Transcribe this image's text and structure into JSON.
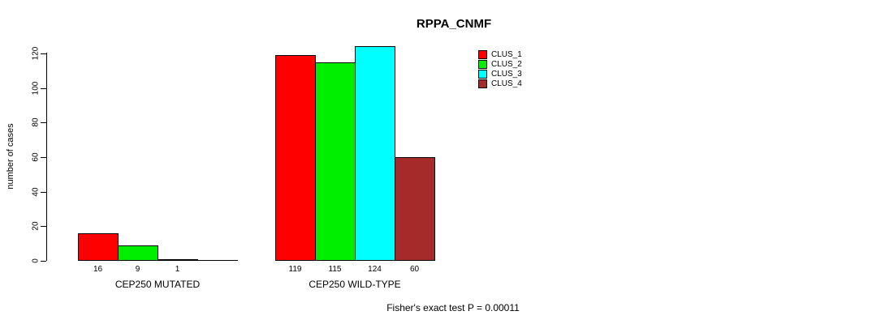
{
  "chart_data": {
    "type": "bar",
    "title": "RPPA_CNMF",
    "ylabel": "number of cases",
    "xlabel": "",
    "ylim": [
      0,
      120
    ],
    "yticks": [
      0,
      20,
      40,
      60,
      80,
      100,
      120
    ],
    "grid": false,
    "legend_position": "top-right",
    "categories": [
      "CEP250 MUTATED",
      "CEP250 WILD-TYPE"
    ],
    "series": [
      {
        "name": "CLUS_1",
        "color": "#FF0000",
        "values": [
          16,
          119
        ]
      },
      {
        "name": "CLUS_2",
        "color": "#00EE00",
        "values": [
          9,
          115
        ]
      },
      {
        "name": "CLUS_3",
        "color": "#00FFFF",
        "values": [
          1,
          124
        ]
      },
      {
        "name": "CLUS_4",
        "color": "#A52A2A",
        "values": [
          0,
          60
        ]
      }
    ],
    "bar_value_labels": [
      "16",
      "9",
      "1",
      "",
      "119",
      "115",
      "124",
      "60"
    ],
    "annotation": "Fisher's exact test P = 0.00011"
  }
}
